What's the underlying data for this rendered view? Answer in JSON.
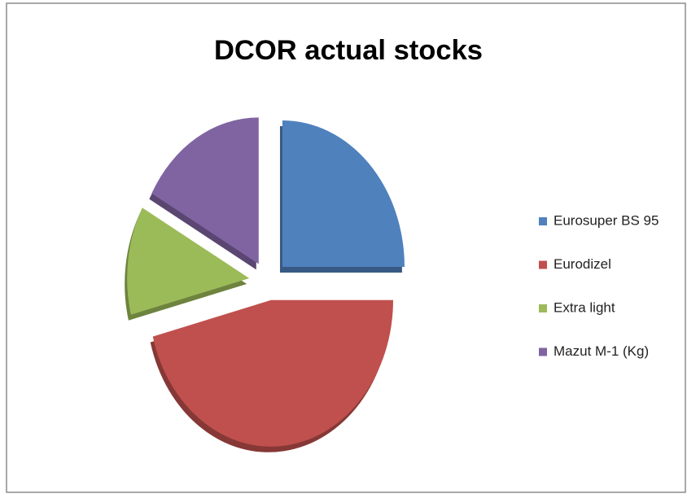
{
  "chart_data": {
    "type": "pie",
    "title": "DCOR  actual stocks",
    "categories": [
      "Eurosuper BS 95",
      "Eurodizel",
      "Extra light",
      "Mazut M-1 (Kg)"
    ],
    "values": [
      25,
      46,
      12,
      17
    ],
    "colors": [
      "#4f81bd",
      "#c0504d",
      "#9bbb59",
      "#8064a2"
    ],
    "legend": "right"
  }
}
